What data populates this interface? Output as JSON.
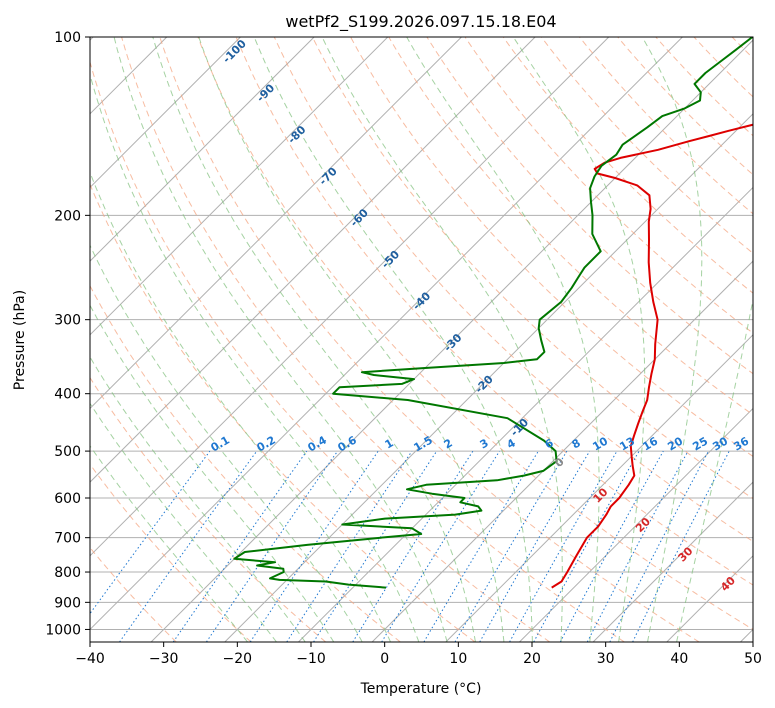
{
  "chart_data": {
    "type": "line",
    "title": "wetPf2_S199.2026.097.15.18.E04",
    "xlabel": "Temperature (°C)",
    "ylabel": "Pressure (hPa)",
    "xlim": [
      -40,
      50
    ],
    "ylim": [
      1050,
      100
    ],
    "y_scale": "log",
    "x_ticks": [
      -40,
      -30,
      -20,
      -10,
      0,
      10,
      20,
      30,
      40,
      50
    ],
    "x_tick_labels": [
      "−40",
      "−30",
      "−20",
      "−10",
      "0",
      "10",
      "20",
      "30",
      "40",
      "50"
    ],
    "y_ticks": [
      100,
      200,
      300,
      400,
      500,
      600,
      700,
      800,
      900,
      1000
    ],
    "y_tick_labels": [
      "100",
      "200",
      "300",
      "400",
      "500",
      "600",
      "700",
      "800",
      "900",
      "1000"
    ],
    "grid": true,
    "skew": true,
    "colors": {
      "temperature": "#dd0000",
      "dewpoint": "#007700",
      "dry_adiabat": "#f4a582",
      "moist_adiabat": "#7fbf7b",
      "mixing_ratio": "#1f78d1",
      "label_blue": "#1f5f9f",
      "label_red": "#d62728"
    },
    "series": [
      {
        "key": "temperature",
        "points": [
          [
            17,
            850
          ],
          [
            17.5,
            830
          ],
          [
            17,
            800
          ],
          [
            16,
            750
          ],
          [
            15,
            700
          ],
          [
            15,
            670
          ],
          [
            14.5,
            640
          ],
          [
            14,
            620
          ],
          [
            14,
            600
          ],
          [
            13.5,
            570
          ],
          [
            13,
            550
          ],
          [
            11.5,
            530
          ],
          [
            10,
            510
          ],
          [
            8.5,
            490
          ],
          [
            7.5,
            470
          ],
          [
            6.5,
            450
          ],
          [
            5.5,
            430
          ],
          [
            4.5,
            410
          ],
          [
            3,
            390
          ],
          [
            1.5,
            370
          ],
          [
            0,
            350
          ],
          [
            -2,
            330
          ],
          [
            -5,
            300
          ],
          [
            -8,
            280
          ],
          [
            -11,
            260
          ],
          [
            -14,
            240
          ],
          [
            -17,
            220
          ],
          [
            -19.5,
            205
          ],
          [
            -21,
            195
          ],
          [
            -23,
            185
          ],
          [
            -26,
            178
          ],
          [
            -30,
            173
          ],
          [
            -33,
            170
          ],
          [
            -34,
            167
          ],
          [
            -33.5,
            163
          ],
          [
            -32,
            160
          ],
          [
            -28,
            155
          ],
          [
            -25,
            150
          ],
          [
            -23,
            147
          ],
          [
            -21,
            144
          ],
          [
            -15,
            136
          ],
          [
            -12,
            130
          ],
          [
            -11.5,
            125
          ],
          [
            -11,
            120
          ],
          [
            -13.5,
            115
          ],
          [
            -15,
            110
          ],
          [
            -16.5,
            105
          ],
          [
            -17.5,
            100
          ]
        ]
      },
      {
        "key": "dewpoint",
        "points": [
          [
            -5.5,
            850
          ],
          [
            -11,
            840
          ],
          [
            -14.5,
            830
          ],
          [
            -21,
            825
          ],
          [
            -22.5,
            820
          ],
          [
            -21.5,
            800
          ],
          [
            -22,
            790
          ],
          [
            -26,
            780
          ],
          [
            -24,
            770
          ],
          [
            -30,
            760
          ],
          [
            -29.5,
            740
          ],
          [
            -22,
            720
          ],
          [
            -13,
            700
          ],
          [
            -8,
            690
          ],
          [
            -10,
            675
          ],
          [
            -20,
            665
          ],
          [
            -15,
            650
          ],
          [
            -6,
            640
          ],
          [
            -3,
            630
          ],
          [
            -4,
            620
          ],
          [
            -7,
            610
          ],
          [
            -7,
            600
          ],
          [
            -12,
            590
          ],
          [
            -16,
            580
          ],
          [
            -14,
            570
          ],
          [
            -5,
            560
          ],
          [
            -2,
            550
          ],
          [
            0,
            540
          ],
          [
            0.5,
            520
          ],
          [
            -1,
            500
          ],
          [
            -4,
            480
          ],
          [
            -12,
            440
          ],
          [
            -28,
            410
          ],
          [
            -39,
            400
          ],
          [
            -39,
            390
          ],
          [
            -31,
            385
          ],
          [
            -30,
            378
          ],
          [
            -36,
            372
          ],
          [
            -38,
            368
          ],
          [
            -30,
            362
          ],
          [
            -20,
            355
          ],
          [
            -16,
            350
          ],
          [
            -16,
            340
          ],
          [
            -18,
            325
          ],
          [
            -20,
            310
          ],
          [
            -21,
            300
          ],
          [
            -20.5,
            280
          ],
          [
            -21,
            265
          ],
          [
            -21.5,
            255
          ],
          [
            -22,
            245
          ],
          [
            -22,
            230
          ],
          [
            -25.5,
            215
          ],
          [
            -28,
            200
          ],
          [
            -30,
            190
          ],
          [
            -32,
            180
          ],
          [
            -33,
            172
          ],
          [
            -33.5,
            165
          ],
          [
            -33,
            158
          ],
          [
            -33.5,
            152
          ],
          [
            -33,
            147
          ],
          [
            -32.5,
            142
          ],
          [
            -32,
            136
          ],
          [
            -30,
            132
          ],
          [
            -29,
            128
          ],
          [
            -30,
            124
          ],
          [
            -32,
            120
          ],
          [
            -32,
            115
          ],
          [
            -31.5,
            110
          ],
          [
            -31,
            105
          ],
          [
            -30.5,
            100
          ]
        ]
      }
    ],
    "dry_adiabat_labels": [
      "-100",
      "-90",
      "-80",
      "-70",
      "-60",
      "-50",
      "-40",
      "-30",
      "-20",
      "-10",
      "0",
      "10",
      "20",
      "30",
      "40"
    ],
    "mixing_ratio_labels": [
      "0.1",
      "0.2",
      "0.4",
      "0.6",
      "1",
      "1.5",
      "2",
      "3",
      "4",
      "6",
      "8",
      "10",
      "13",
      "16",
      "20",
      "25",
      "30",
      "36"
    ]
  }
}
